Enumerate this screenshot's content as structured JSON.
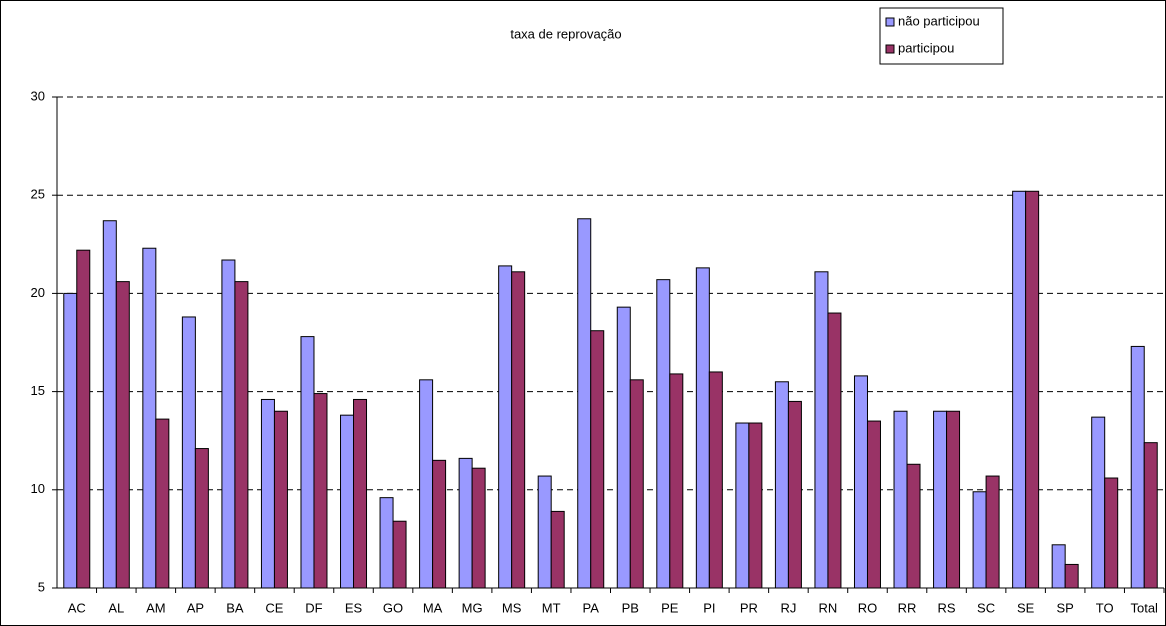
{
  "chart_data": {
    "type": "bar",
    "title": "taxa de reprovação",
    "categories": [
      "AC",
      "AL",
      "AM",
      "AP",
      "BA",
      "CE",
      "DF",
      "ES",
      "GO",
      "MA",
      "MG",
      "MS",
      "MT",
      "PA",
      "PB",
      "PE",
      "PI",
      "PR",
      "RJ",
      "RN",
      "RO",
      "RR",
      "RS",
      "SC",
      "SE",
      "SP",
      "TO",
      "Total"
    ],
    "series": [
      {
        "name": "não participou",
        "color": "#9999ff",
        "values": [
          20.0,
          23.7,
          22.3,
          18.8,
          21.7,
          14.6,
          17.8,
          13.8,
          9.6,
          15.6,
          11.6,
          21.4,
          10.7,
          23.8,
          19.3,
          20.7,
          21.3,
          13.4,
          15.5,
          21.1,
          15.8,
          14.0,
          14.0,
          9.9,
          25.2,
          7.2,
          13.7,
          17.3
        ]
      },
      {
        "name": "participou",
        "color": "#993366",
        "values": [
          22.2,
          20.6,
          13.6,
          12.1,
          20.6,
          14.0,
          14.9,
          14.6,
          8.4,
          11.5,
          11.1,
          21.1,
          8.9,
          18.1,
          15.6,
          15.9,
          16.0,
          13.4,
          14.5,
          19.0,
          13.5,
          11.3,
          14.0,
          10.7,
          25.2,
          6.2,
          10.6,
          12.4
        ]
      }
    ],
    "ylim": [
      5,
      30
    ],
    "yticks": [
      5,
      10,
      15,
      20,
      25,
      30
    ],
    "grid": true,
    "legend": "top-right"
  }
}
